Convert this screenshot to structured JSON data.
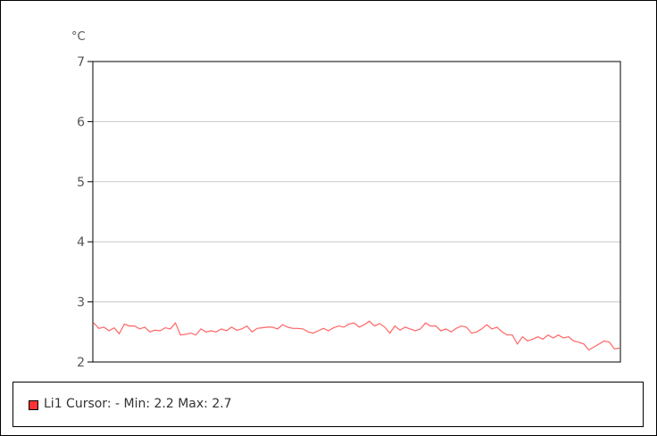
{
  "chart_data": {
    "type": "line",
    "ylabel": "°C",
    "ylim": [
      2,
      7
    ],
    "yticks": [
      "2",
      "3",
      "4",
      "5",
      "6",
      "7"
    ],
    "grid": true,
    "series": [
      {
        "name": "Li1",
        "color": "#ff6666",
        "values": [
          2.65,
          2.56,
          2.58,
          2.52,
          2.57,
          2.47,
          2.63,
          2.6,
          2.6,
          2.55,
          2.58,
          2.5,
          2.53,
          2.52,
          2.57,
          2.55,
          2.65,
          2.45,
          2.46,
          2.48,
          2.45,
          2.55,
          2.5,
          2.52,
          2.5,
          2.55,
          2.52,
          2.58,
          2.53,
          2.55,
          2.6,
          2.5,
          2.56,
          2.57,
          2.58,
          2.58,
          2.55,
          2.62,
          2.58,
          2.56,
          2.56,
          2.55,
          2.5,
          2.48,
          2.52,
          2.56,
          2.52,
          2.57,
          2.6,
          2.58,
          2.63,
          2.65,
          2.58,
          2.62,
          2.68,
          2.6,
          2.64,
          2.58,
          2.48,
          2.6,
          2.53,
          2.58,
          2.55,
          2.52,
          2.55,
          2.65,
          2.6,
          2.6,
          2.52,
          2.55,
          2.5,
          2.56,
          2.6,
          2.58,
          2.48,
          2.5,
          2.55,
          2.62,
          2.55,
          2.58,
          2.5,
          2.45,
          2.45,
          2.3,
          2.42,
          2.35,
          2.38,
          2.42,
          2.38,
          2.45,
          2.4,
          2.45,
          2.4,
          2.42,
          2.35,
          2.33,
          2.3,
          2.2,
          2.25,
          2.3,
          2.35,
          2.33,
          2.22,
          2.23
        ]
      }
    ],
    "legend": {
      "position": "bottom",
      "text": "Li1 Cursor: - Min: 2.2 Max: 2.7"
    }
  }
}
